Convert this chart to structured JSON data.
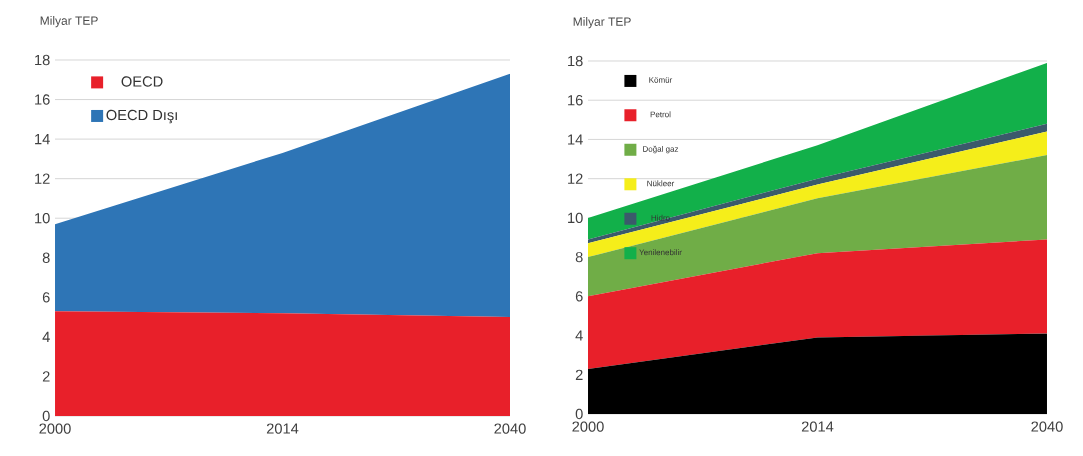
{
  "chart_data": [
    {
      "type": "area",
      "stacked": true,
      "ylabel": "Milyar TEP",
      "categories": [
        "2000",
        "2014",
        "2040"
      ],
      "ylim": [
        0,
        18
      ],
      "yticks": [
        0,
        2,
        4,
        6,
        8,
        10,
        12,
        14,
        16,
        18
      ],
      "grid": "y",
      "legend": "top left",
      "series": [
        {
          "name": "OECD",
          "color": "#e8202a",
          "values": [
            5.3,
            5.2,
            5.0
          ]
        },
        {
          "name": "OECD Dışı",
          "color": "#2e75b6",
          "values": [
            4.4,
            8.1,
            12.3
          ]
        }
      ]
    },
    {
      "type": "area",
      "stacked": true,
      "ylabel": "Milyar TEP",
      "categories": [
        "2000",
        "2014",
        "2040"
      ],
      "ylim": [
        0,
        18
      ],
      "yticks": [
        0,
        2,
        4,
        6,
        8,
        10,
        12,
        14,
        16,
        18
      ],
      "grid": "y",
      "legend": "top left",
      "series": [
        {
          "name": "Kömür",
          "color": "#000000",
          "values": [
            2.3,
            3.9,
            4.1
          ]
        },
        {
          "name": "Petrol",
          "color": "#e8202a",
          "values": [
            3.7,
            4.3,
            4.8
          ]
        },
        {
          "name": "Doğal gaz",
          "color": "#70ad47",
          "values": [
            2.0,
            2.8,
            4.3
          ]
        },
        {
          "name": "Nükleer",
          "color": "#f5ee1a",
          "values": [
            0.7,
            0.7,
            1.2
          ]
        },
        {
          "name": "Hidro",
          "color": "#3b5a6b",
          "values": [
            0.2,
            0.3,
            0.4
          ]
        },
        {
          "name": "Yenilenebilir",
          "color": "#12b04a",
          "values": [
            1.1,
            1.7,
            3.1
          ]
        }
      ]
    }
  ]
}
